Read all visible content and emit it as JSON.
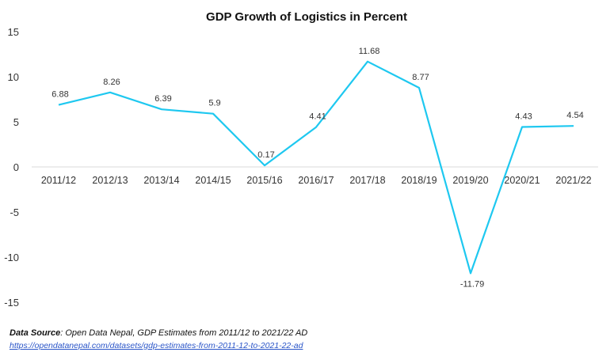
{
  "chart_data": {
    "type": "line",
    "title": "GDP Growth of Logistics in Percent",
    "categories": [
      "2011/12",
      "2012/13",
      "2013/14",
      "2014/15",
      "2015/16",
      "2016/17",
      "2017/18",
      "2018/19",
      "2019/20",
      "2020/21",
      "2021/22"
    ],
    "values": [
      6.88,
      8.26,
      6.39,
      5.9,
      0.17,
      4.41,
      11.68,
      8.77,
      -11.79,
      4.43,
      4.54
    ],
    "data_labels": [
      "6.88",
      "8.26",
      "6.39",
      "5.9",
      "0.17",
      "4.41",
      "11.68",
      "8.77",
      "-11.79",
      "4.43",
      "4.54"
    ],
    "yticks": [
      "15",
      "10",
      "5",
      "0",
      "-5",
      "-10",
      "-15"
    ],
    "ylim": [
      -15,
      15
    ],
    "grid": false,
    "line_color": "#1ec8f0"
  },
  "source": {
    "label": "Data Source",
    "text": ": Open Data Nepal,  GDP Estimates from 2011/12 to 2021/22 AD",
    "link": "https://opendatanepal.com/datasets/gdp-estimates-from-2011-12-to-2021-22-ad"
  }
}
